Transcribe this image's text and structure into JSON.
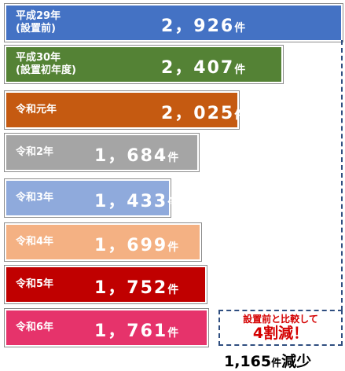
{
  "chart_data": {
    "type": "bar",
    "orientation": "horizontal",
    "categories": [
      "平成29年\n(設置前)",
      "平成30年\n(設置初年度)",
      "令和元年",
      "令和2年",
      "令和3年",
      "令和4年",
      "令和5年",
      "令和6年"
    ],
    "values": [
      2926,
      2407,
      2025,
      1684,
      1433,
      1699,
      1752,
      1761
    ],
    "value_labels": [
      "2，926",
      "2，407",
      "2，025",
      "1，684",
      "1，433",
      "1，699",
      "1，752",
      "1，761"
    ],
    "unit": "件",
    "colors": [
      "#4472c4",
      "#548235",
      "#c55a11",
      "#a5a5a5",
      "#8faadc",
      "#f4b183",
      "#c00000",
      "#e6336b"
    ],
    "annotation": {
      "line1": "設置前と比較して",
      "line2": "4割減！",
      "reduction_value": "1,165",
      "reduction_unit": "件",
      "reduction_suffix": "減少"
    }
  }
}
